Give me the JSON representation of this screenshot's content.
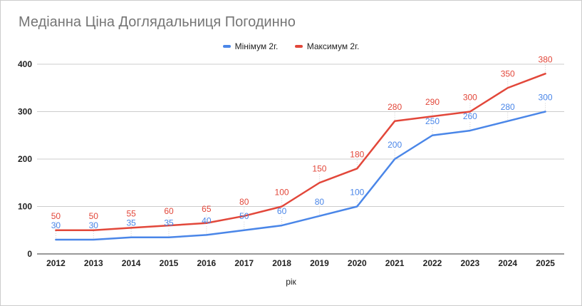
{
  "chart_data": {
    "type": "line",
    "title": "Медіанна Ціна Доглядальниця Погодинно",
    "xlabel": "рік",
    "ylabel": "",
    "categories": [
      "2012",
      "2013",
      "2014",
      "2015",
      "2016",
      "2017",
      "2018",
      "2019",
      "2020",
      "2021",
      "2022",
      "2023",
      "2024",
      "2025"
    ],
    "yticks": [
      0,
      100,
      200,
      300,
      400
    ],
    "ylim": [
      0,
      400
    ],
    "grid": true,
    "legend_position": "top",
    "series": [
      {
        "name": "Мінімум 2г.",
        "color": "#4a86e8",
        "values": [
          30,
          30,
          35,
          35,
          40,
          50,
          60,
          80,
          100,
          200,
          250,
          260,
          280,
          300
        ]
      },
      {
        "name": "Максимум 2г.",
        "color": "#e2473a",
        "values": [
          50,
          50,
          55,
          60,
          65,
          80,
          100,
          150,
          180,
          280,
          290,
          300,
          350,
          380
        ]
      }
    ]
  }
}
